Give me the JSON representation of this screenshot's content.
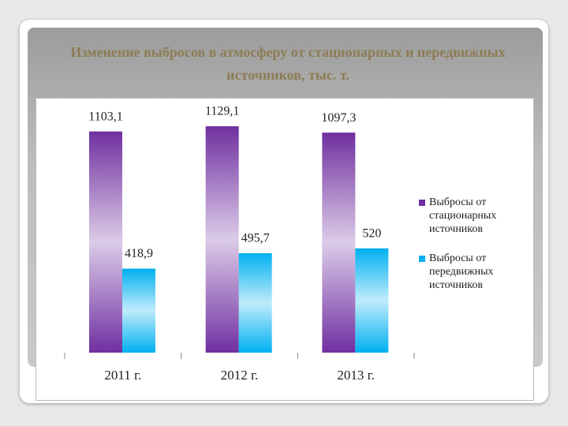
{
  "chart_data": {
    "type": "bar",
    "title": "Изменение выбросов в атмосферу от стационарных и передвижных источников, тыс. т.",
    "categories": [
      "2011 г.",
      "2012 г.",
      "2013 г."
    ],
    "series": [
      {
        "name": "Выбросы от стационарных источников",
        "color": "#7030a0",
        "values": [
          1103.1,
          1129.1,
          1097.3
        ],
        "value_labels": [
          "1103,1",
          "1129,1",
          "1097,3"
        ]
      },
      {
        "name": "Выбросы от передвижных источников",
        "color": "#00b0f0",
        "values": [
          418.9,
          495.7,
          520
        ],
        "value_labels": [
          "418,9",
          "495,7",
          "520"
        ]
      }
    ],
    "ylim": [
      0,
      1200
    ],
    "legend": "right"
  }
}
